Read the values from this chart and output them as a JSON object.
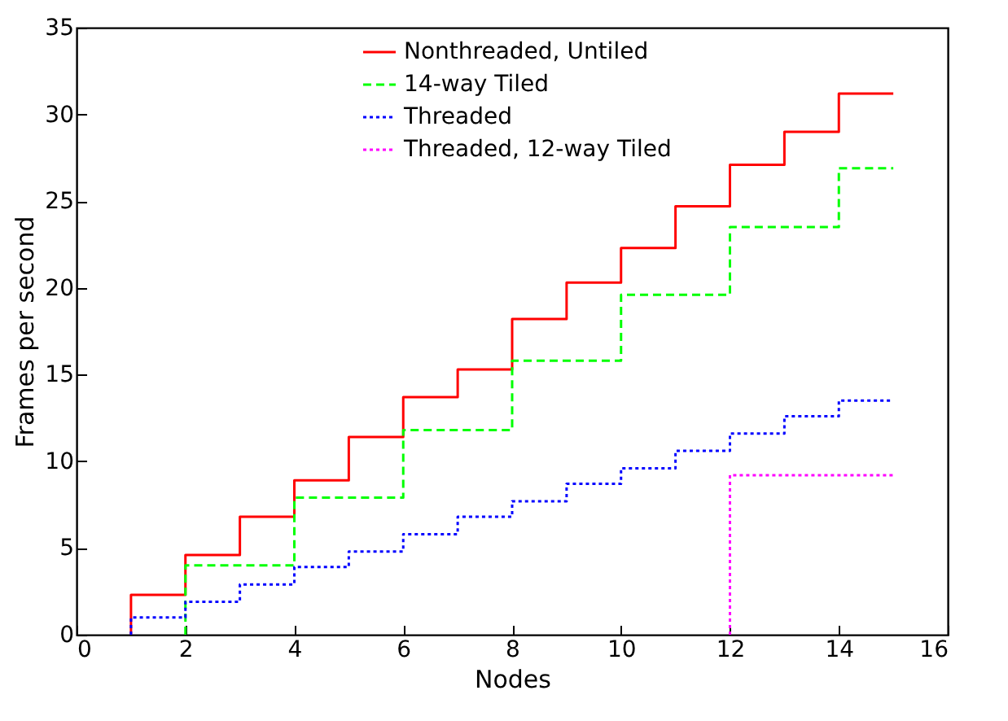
{
  "chart_data": {
    "type": "step",
    "xlabel": "Nodes",
    "ylabel": "Frames per second",
    "xlim": [
      0,
      16
    ],
    "xticks": [
      0,
      2,
      4,
      6,
      8,
      10,
      12,
      14,
      16
    ],
    "ylim": [
      0,
      35
    ],
    "yticks": [
      0,
      5,
      10,
      15,
      20,
      25,
      30,
      35
    ],
    "grid": false,
    "legend": "top",
    "marker": "none",
    "series": [
      {
        "name": "Nonthreaded, Untiled",
        "color": "#ff0000",
        "line_style": "solid",
        "x": [
          1,
          2,
          3,
          4,
          5,
          6,
          7,
          8,
          9,
          10,
          11,
          12,
          13,
          14,
          15
        ],
        "values": [
          0,
          2.3,
          4.6,
          6.8,
          8.9,
          11.4,
          13.7,
          15.3,
          18.2,
          20.3,
          22.3,
          24.7,
          27.1,
          29.0,
          31.2
        ]
      },
      {
        "name": "14-way Tiled",
        "color": "#00ff00",
        "line_style": "dashed",
        "x": [
          2,
          4,
          6,
          8,
          10,
          12,
          14,
          15
        ],
        "values": [
          0,
          4.0,
          7.9,
          11.8,
          15.8,
          19.6,
          23.5,
          26.9
        ]
      },
      {
        "name": "Threaded",
        "color": "#0000ff",
        "line_style": "dotted",
        "x": [
          1,
          2,
          3,
          4,
          5,
          6,
          7,
          8,
          9,
          10,
          11,
          12,
          13,
          14,
          15
        ],
        "values": [
          0,
          1.0,
          1.9,
          2.9,
          3.9,
          4.8,
          5.8,
          6.8,
          7.7,
          8.7,
          9.6,
          10.6,
          11.6,
          12.6,
          13.5
        ]
      },
      {
        "name": "Threaded, 12-way Tiled",
        "color": "#ff00ff",
        "line_style": "dotted",
        "x": [
          12,
          15
        ],
        "values": [
          0,
          9.2
        ]
      }
    ]
  }
}
